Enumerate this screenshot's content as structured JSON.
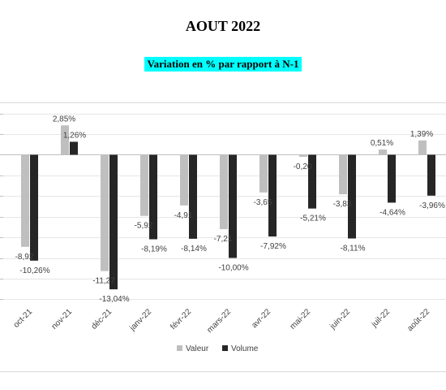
{
  "title": "AOUT 2022",
  "subtitle": "Variation en % par rapport à N-1",
  "colors": {
    "valeur": "#bfbfbf",
    "volume": "#262626",
    "subtitle_bg": "#00ffff"
  },
  "chart_data": {
    "type": "bar",
    "categories": [
      "oct-21",
      "nov-21",
      "déc-21",
      "janv-22",
      "févr-22",
      "mars-22",
      "avr-22",
      "mai-22",
      "juin-22",
      "juil-22",
      "août-22"
    ],
    "series": [
      {
        "name": "Valeur",
        "values": [
          -8.92,
          2.85,
          -11.27,
          -5.92,
          -4.91,
          -7.21,
          -3.65,
          -0.2,
          -3.83,
          0.51,
          1.39
        ],
        "labels": [
          "-8,92",
          "2,85%",
          "-11,27",
          "-5,92",
          "-4,91",
          "-7,21",
          "-3,65",
          "-0,20",
          "-3,83",
          "0,51%",
          "1,39%"
        ]
      },
      {
        "name": "Volume",
        "values": [
          -10.26,
          1.26,
          -13.04,
          -8.19,
          -8.14,
          -10.0,
          -7.92,
          -5.21,
          -8.11,
          -4.64,
          -3.96
        ],
        "labels": [
          "-10,26%",
          "1,26%",
          "-13,04%",
          "-8,19%",
          "-8,14%",
          "-10,00%",
          "-7,92%",
          "-5,21%",
          "-8,11%",
          "-4,64%",
          "-3,96%"
        ]
      }
    ],
    "ylim": [
      -14,
      4
    ],
    "grid": true,
    "legend": "bottom"
  }
}
